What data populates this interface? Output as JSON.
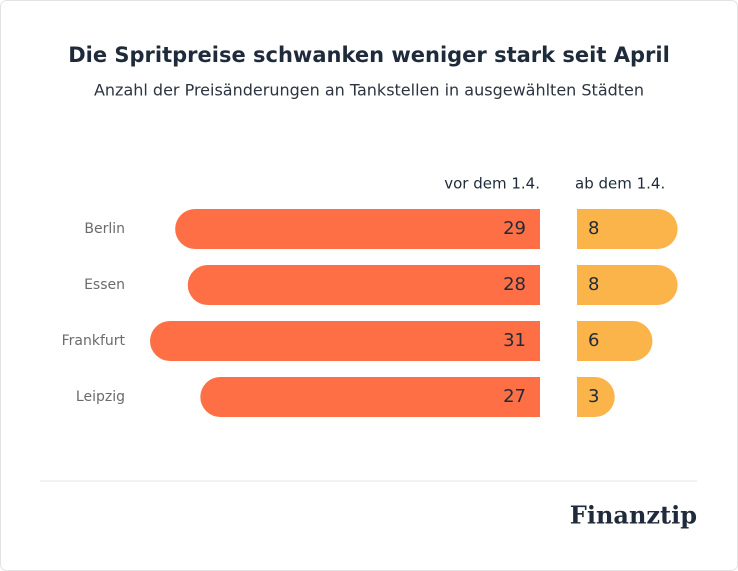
{
  "chart_data": {
    "type": "bar",
    "orientation": "horizontal",
    "title": "Die Spritpreise schwanken weniger stark seit April",
    "subtitle": "Anzahl der Preisänderungen an Tankstellen in ausgewählten Städten",
    "categories": [
      "Berlin",
      "Essen",
      "Frankfurt",
      "Leipzig"
    ],
    "series": [
      {
        "name": "vor dem 1.4.",
        "color": "#ff6f45",
        "values": [
          29,
          28,
          31,
          27
        ]
      },
      {
        "name": "ab dem 1.4.",
        "color": "#fbb44a",
        "values": [
          8,
          8,
          6,
          3
        ]
      }
    ]
  },
  "footer": {
    "brand": "Finanztip"
  }
}
